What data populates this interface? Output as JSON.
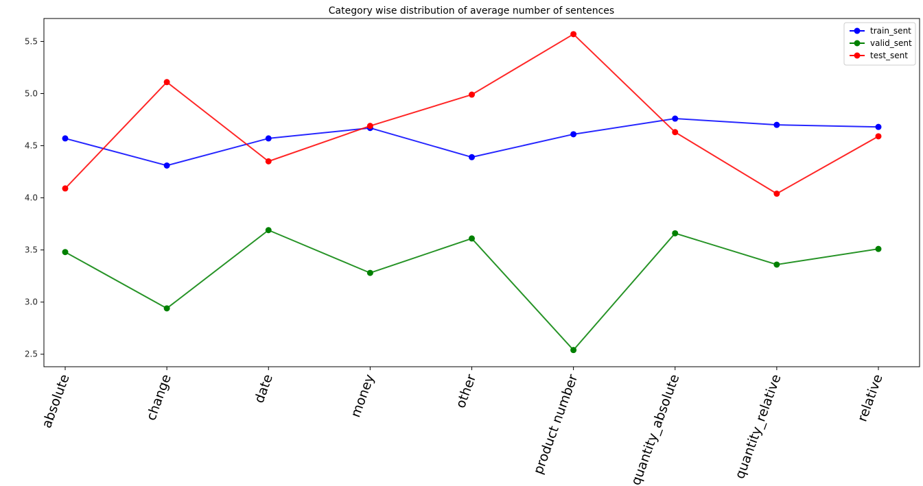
{
  "chart_data": {
    "type": "line",
    "title": "Category wise distribution of average number of sentences",
    "xlabel": "",
    "ylabel": "",
    "categories": [
      "absolute",
      "change",
      "date",
      "money",
      "other",
      "product number",
      "quantity_absolute",
      "quantity_relative",
      "relative"
    ],
    "ylim": [
      2.38,
      5.72
    ],
    "yticks": [
      "2.5",
      "3.0",
      "3.5",
      "4.0",
      "4.5",
      "5.0",
      "5.5"
    ],
    "grid": false,
    "legend_position": "top-right",
    "series": [
      {
        "name": "train_sent",
        "color": "#0000ff",
        "values": [
          4.57,
          4.31,
          4.57,
          4.67,
          4.39,
          4.61,
          4.76,
          4.7,
          4.68
        ]
      },
      {
        "name": "valid_sent",
        "color": "#008000",
        "values": [
          3.48,
          2.94,
          3.69,
          3.28,
          3.61,
          2.54,
          3.66,
          3.36,
          3.51
        ]
      },
      {
        "name": "test_sent",
        "color": "#ff0000",
        "values": [
          4.09,
          5.11,
          4.35,
          4.69,
          4.99,
          5.57,
          4.63,
          4.04,
          4.59
        ]
      }
    ]
  }
}
